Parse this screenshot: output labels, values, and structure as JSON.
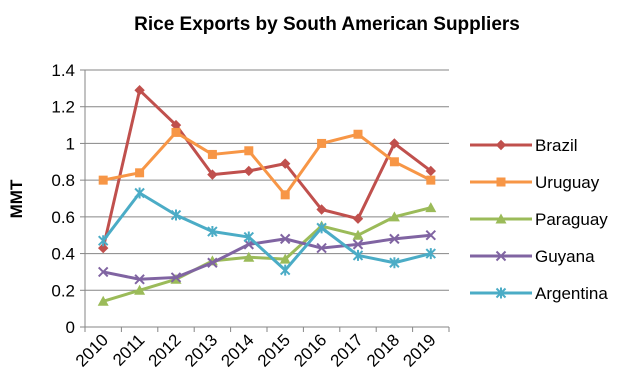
{
  "chart_data": {
    "type": "line",
    "title": "Rice Exports by South American Suppliers",
    "xlabel": "",
    "ylabel": "MMT",
    "x": [
      "2010",
      "2011",
      "2012",
      "2013",
      "2014",
      "2015",
      "2016",
      "2017",
      "2018",
      "2019"
    ],
    "yticks": [
      "0",
      "0.2",
      "0.4",
      "0.6",
      "0.8",
      "1",
      "1.2",
      "1.4"
    ],
    "ylim": [
      0,
      1.4
    ],
    "grid": "horizontal",
    "legend": "right",
    "series": [
      {
        "name": "Brazil",
        "color": "#C0504D",
        "marker": "diamond",
        "values": [
          0.43,
          1.29,
          1.1,
          0.83,
          0.85,
          0.89,
          0.64,
          0.59,
          1.0,
          0.85
        ]
      },
      {
        "name": "Uruguay",
        "color": "#F79646",
        "marker": "square",
        "values": [
          0.8,
          0.84,
          1.06,
          0.94,
          0.96,
          0.72,
          1.0,
          1.05,
          0.9,
          0.8
        ]
      },
      {
        "name": "Paraguay",
        "color": "#9BBB59",
        "marker": "triangle",
        "values": [
          0.14,
          0.2,
          0.26,
          0.36,
          0.38,
          0.37,
          0.55,
          0.5,
          0.6,
          0.65
        ]
      },
      {
        "name": "Guyana",
        "color": "#8064A2",
        "marker": "x",
        "values": [
          0.3,
          0.26,
          0.27,
          0.35,
          0.45,
          0.48,
          0.43,
          0.45,
          0.48,
          0.5
        ]
      },
      {
        "name": "Argentina",
        "color": "#4BACC6",
        "marker": "star",
        "values": [
          0.47,
          0.73,
          0.61,
          0.52,
          0.49,
          0.31,
          0.54,
          0.39,
          0.35,
          0.4
        ]
      }
    ]
  }
}
